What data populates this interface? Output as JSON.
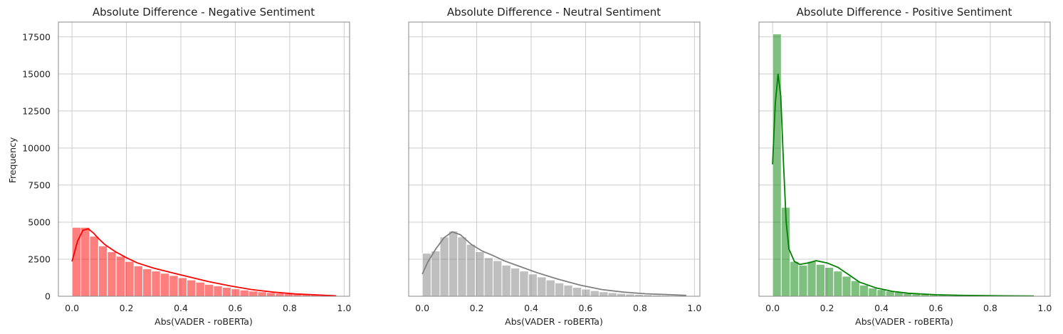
{
  "chart_data": [
    {
      "type": "histogram",
      "title": "Absolute Difference - Negative Sentiment",
      "xlabel": "Abs(VADER - roBERTa)",
      "ylabel": "Frequency",
      "xlim": [
        -0.05,
        1.02
      ],
      "ylim": [
        0,
        18500
      ],
      "xticks": [
        "0.0",
        "0.2",
        "0.4",
        "0.6",
        "0.8",
        "1.0"
      ],
      "yticks": [
        "0",
        "2500",
        "5000",
        "7500",
        "10000",
        "12500",
        "15000",
        "17500"
      ],
      "grid": true,
      "color": "#ff0000",
      "bin_start": 0.0,
      "bin_width": 0.0325,
      "values": [
        4650,
        4650,
        4050,
        3400,
        3000,
        2700,
        2350,
        2050,
        1850,
        1700,
        1550,
        1400,
        1250,
        1100,
        950,
        800,
        700,
        600,
        500,
        420,
        350,
        300,
        250,
        210,
        180,
        150,
        120,
        100,
        80,
        60
      ],
      "kde": [
        [
          0.0,
          2350
        ],
        [
          0.02,
          3700
        ],
        [
          0.04,
          4450
        ],
        [
          0.06,
          4550
        ],
        [
          0.08,
          4250
        ],
        [
          0.1,
          3850
        ],
        [
          0.12,
          3500
        ],
        [
          0.14,
          3250
        ],
        [
          0.16,
          3000
        ],
        [
          0.18,
          2800
        ],
        [
          0.2,
          2600
        ],
        [
          0.24,
          2250
        ],
        [
          0.3,
          1900
        ],
        [
          0.36,
          1620
        ],
        [
          0.42,
          1350
        ],
        [
          0.5,
          1000
        ],
        [
          0.58,
          700
        ],
        [
          0.66,
          450
        ],
        [
          0.74,
          280
        ],
        [
          0.82,
          160
        ],
        [
          0.9,
          90
        ],
        [
          0.97,
          30
        ]
      ]
    },
    {
      "type": "histogram",
      "title": "Absolute Difference - Neutral Sentiment",
      "xlabel": "Abs(VADER - roBERTa)",
      "ylabel": "",
      "xlim": [
        -0.05,
        1.02
      ],
      "ylim": [
        0,
        18500
      ],
      "xticks": [
        "0.0",
        "0.2",
        "0.4",
        "0.6",
        "0.8",
        "1.0"
      ],
      "yticks": [],
      "grid": true,
      "color": "#808080",
      "bin_start": 0.0,
      "bin_width": 0.0325,
      "values": [
        2900,
        3050,
        4000,
        4400,
        4000,
        3500,
        3000,
        2600,
        2400,
        2100,
        1900,
        1700,
        1500,
        1300,
        1100,
        900,
        750,
        600,
        480,
        380,
        300,
        240,
        190,
        150,
        120,
        100,
        80,
        60,
        45,
        30
      ],
      "kde": [
        [
          0.0,
          1500
        ],
        [
          0.02,
          2300
        ],
        [
          0.05,
          3200
        ],
        [
          0.08,
          3950
        ],
        [
          0.11,
          4350
        ],
        [
          0.14,
          4150
        ],
        [
          0.18,
          3500
        ],
        [
          0.22,
          3050
        ],
        [
          0.26,
          2750
        ],
        [
          0.3,
          2400
        ],
        [
          0.36,
          2000
        ],
        [
          0.42,
          1600
        ],
        [
          0.5,
          1150
        ],
        [
          0.58,
          750
        ],
        [
          0.66,
          450
        ],
        [
          0.74,
          280
        ],
        [
          0.82,
          170
        ],
        [
          0.9,
          110
        ],
        [
          0.97,
          60
        ]
      ]
    },
    {
      "type": "histogram",
      "title": "Absolute Difference - Positive Sentiment",
      "xlabel": "Abs(VADER - roBERTa)",
      "ylabel": "",
      "xlim": [
        -0.05,
        1.02
      ],
      "ylim": [
        0,
        18500
      ],
      "xticks": [
        "0.0",
        "0.2",
        "0.4",
        "0.6",
        "0.8",
        "1.0"
      ],
      "yticks": [],
      "grid": true,
      "color": "#008000",
      "bin_start": 0.0,
      "bin_width": 0.032,
      "values": [
        17700,
        6000,
        2350,
        2100,
        2350,
        2150,
        1950,
        1700,
        1350,
        1050,
        750,
        550,
        450,
        350,
        280,
        200,
        150,
        120,
        90,
        70,
        55,
        45,
        35,
        28,
        22,
        18,
        14,
        11,
        8,
        6
      ],
      "kde": [
        [
          0.0,
          8900
        ],
        [
          0.01,
          13000
        ],
        [
          0.02,
          15000
        ],
        [
          0.03,
          13500
        ],
        [
          0.04,
          9000
        ],
        [
          0.05,
          5000
        ],
        [
          0.06,
          3200
        ],
        [
          0.08,
          2350
        ],
        [
          0.1,
          2150
        ],
        [
          0.13,
          2250
        ],
        [
          0.16,
          2400
        ],
        [
          0.2,
          2250
        ],
        [
          0.24,
          1950
        ],
        [
          0.28,
          1450
        ],
        [
          0.32,
          950
        ],
        [
          0.38,
          560
        ],
        [
          0.44,
          330
        ],
        [
          0.5,
          200
        ],
        [
          0.6,
          100
        ],
        [
          0.7,
          60
        ],
        [
          0.8,
          40
        ],
        [
          0.9,
          25
        ],
        [
          0.96,
          20
        ]
      ]
    }
  ]
}
